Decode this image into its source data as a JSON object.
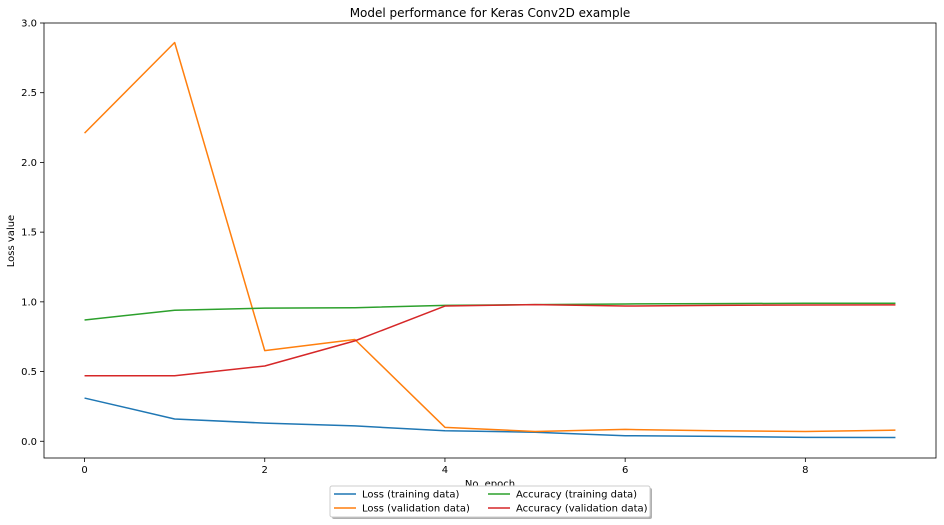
{
  "chart_data": {
    "type": "line",
    "title": "Model performance for Keras Conv2D example",
    "xlabel": "No. epoch",
    "ylabel": "Loss value",
    "xlim": [
      -0.45,
      9.45
    ],
    "ylim": [
      -0.12,
      3.0
    ],
    "xticks": [
      0,
      2,
      4,
      6,
      8
    ],
    "xtick_labels": [
      "0",
      "2",
      "4",
      "6",
      "8"
    ],
    "yticks": [
      0.0,
      0.5,
      1.0,
      1.5,
      2.0,
      2.5,
      3.0
    ],
    "ytick_labels": [
      "0.0",
      "0.5",
      "1.0",
      "1.5",
      "2.0",
      "2.5",
      "3.0"
    ],
    "grid": false,
    "legend_position": "bottom-center",
    "x": [
      0,
      1,
      2,
      3,
      4,
      5,
      6,
      7,
      8,
      9
    ],
    "series": [
      {
        "name": "Loss (training data)",
        "color": "#1f77b4",
        "values": [
          0.31,
          0.16,
          0.13,
          0.11,
          0.075,
          0.065,
          0.04,
          0.035,
          0.028,
          0.027
        ]
      },
      {
        "name": "Loss (validation data)",
        "color": "#ff7f0e",
        "values": [
          2.21,
          2.86,
          0.65,
          0.73,
          0.1,
          0.07,
          0.085,
          0.075,
          0.07,
          0.08
        ]
      },
      {
        "name": "Accuracy (training data)",
        "color": "#2ca02c",
        "values": [
          0.87,
          0.94,
          0.955,
          0.958,
          0.975,
          0.98,
          0.985,
          0.987,
          0.99,
          0.99
        ]
      },
      {
        "name": "Accuracy (validation data)",
        "color": "#d62728",
        "values": [
          0.47,
          0.47,
          0.54,
          0.72,
          0.97,
          0.98,
          0.97,
          0.975,
          0.977,
          0.978
        ]
      }
    ]
  }
}
